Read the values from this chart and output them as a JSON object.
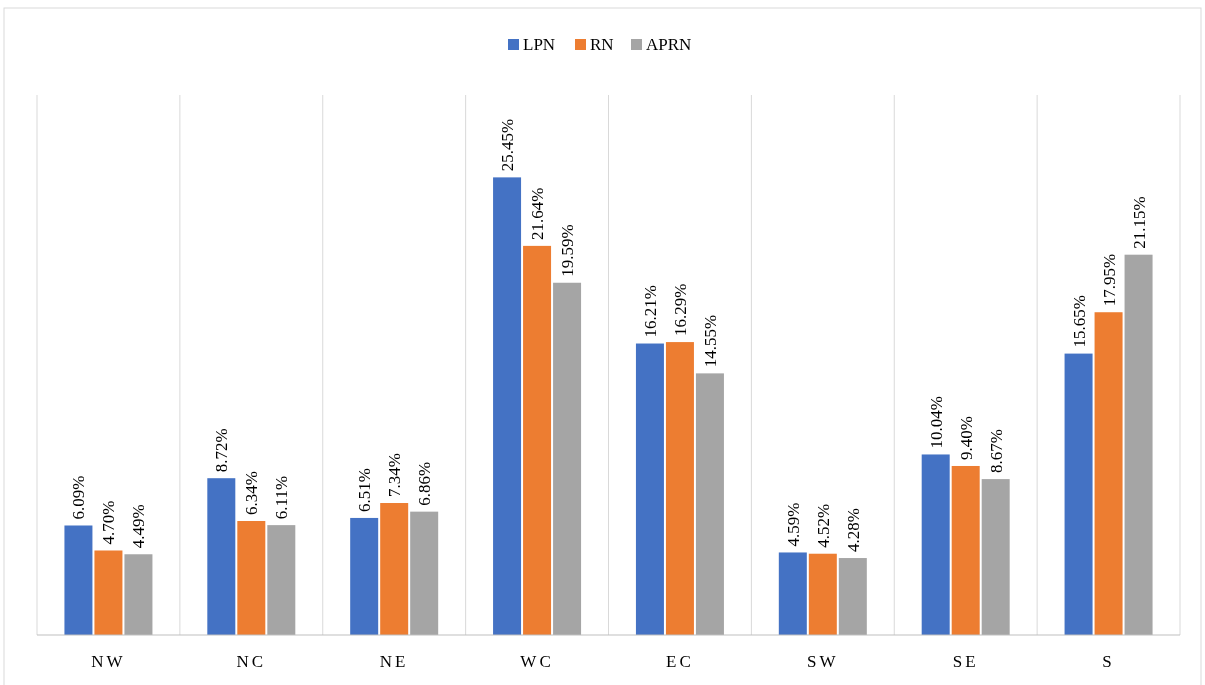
{
  "chart_data": {
    "type": "bar",
    "categories": [
      "NW",
      "NC",
      "NE",
      "WC",
      "EC",
      "SW",
      "SE",
      "S"
    ],
    "series": [
      {
        "name": "LPN",
        "color": "#4472c4",
        "values": [
          6.09,
          8.72,
          6.51,
          25.45,
          16.21,
          4.59,
          10.04,
          15.65
        ],
        "value_labels": [
          "6.09%",
          "8.72%",
          "6.51%",
          "25.45%",
          "16.21%",
          "4.59%",
          "10.04%",
          "15.65%"
        ]
      },
      {
        "name": "RN",
        "color": "#ed7d31",
        "values": [
          4.7,
          6.34,
          7.34,
          21.64,
          16.29,
          4.52,
          9.4,
          17.95
        ],
        "value_labels": [
          "4.70%",
          "6.34%",
          "7.34%",
          "21.64%",
          "16.29%",
          "4.52%",
          "9.40%",
          "17.95%"
        ]
      },
      {
        "name": "APRN",
        "color": "#a5a5a5",
        "values": [
          4.49,
          6.11,
          6.86,
          19.59,
          14.55,
          4.28,
          8.67,
          21.15
        ],
        "value_labels": [
          "4.49%",
          "6.11%",
          "6.86%",
          "19.59%",
          "14.55%",
          "4.28%",
          "8.67%",
          "21.15%"
        ]
      }
    ],
    "grid": "x",
    "legend": "top"
  }
}
